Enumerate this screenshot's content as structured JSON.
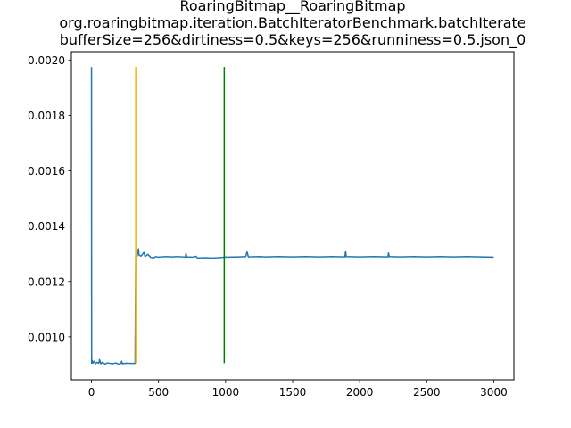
{
  "chart_data": {
    "type": "line",
    "title_lines": [
      "RoaringBitmap__RoaringBitmap",
      "org.roaringbitmap.iteration.BatchIteratorBenchmark.batchIterate",
      "bufferSize=256&dirtiness=0.5&keys=256&runniness=0.5.json_0"
    ],
    "xlim": [
      -150,
      3150
    ],
    "ylim": [
      0.000845,
      0.00203
    ],
    "x_ticks": [
      0,
      500,
      1000,
      1500,
      2000,
      2500,
      3000
    ],
    "y_ticks": [
      0.001,
      0.0012,
      0.0014,
      0.0016,
      0.0018,
      0.002
    ],
    "x_tick_labels": [
      "0",
      "500",
      "1000",
      "1500",
      "2000",
      "2500",
      "3000"
    ],
    "y_tick_labels": [
      "0.0010",
      "0.0012",
      "0.0014",
      "0.0016",
      "0.0018",
      "0.0020"
    ],
    "grid": false,
    "series": [
      {
        "color": "#1f77b4",
        "points": [
          [
            0,
            0.001975
          ],
          [
            1,
            0.000905
          ],
          [
            5,
            0.000915
          ],
          [
            10,
            0.000905
          ],
          [
            20,
            0.000912
          ],
          [
            30,
            0.000903
          ],
          [
            40,
            0.000908
          ],
          [
            55,
            0.000905
          ],
          [
            60,
            0.000918
          ],
          [
            70,
            0.000903
          ],
          [
            80,
            0.000908
          ],
          [
            100,
            0.000902
          ],
          [
            120,
            0.000906
          ],
          [
            140,
            0.000904
          ],
          [
            160,
            0.000903
          ],
          [
            180,
            0.000906
          ],
          [
            200,
            0.000902
          ],
          [
            220,
            0.000904
          ],
          [
            225,
            0.000912
          ],
          [
            230,
            0.000903
          ],
          [
            260,
            0.000905
          ],
          [
            290,
            0.000904
          ],
          [
            325,
            0.000904
          ],
          [
            330,
            0.001298
          ],
          [
            340,
            0.001292
          ],
          [
            350,
            0.001318
          ],
          [
            355,
            0.001295
          ],
          [
            370,
            0.001292
          ],
          [
            390,
            0.001305
          ],
          [
            400,
            0.00129
          ],
          [
            420,
            0.001298
          ],
          [
            440,
            0.001288
          ],
          [
            460,
            0.001285
          ],
          [
            480,
            0.00129
          ],
          [
            500,
            0.001288
          ],
          [
            550,
            0.00129
          ],
          [
            600,
            0.001289
          ],
          [
            650,
            0.00129
          ],
          [
            700,
            0.001288
          ],
          [
            705,
            0.001302
          ],
          [
            710,
            0.001289
          ],
          [
            750,
            0.001288
          ],
          [
            780,
            0.001291
          ],
          [
            790,
            0.001285
          ],
          [
            850,
            0.001286
          ],
          [
            900,
            0.001285
          ],
          [
            950,
            0.001286
          ],
          [
            1000,
            0.001288
          ],
          [
            1100,
            0.001289
          ],
          [
            1150,
            0.00129
          ],
          [
            1160,
            0.001307
          ],
          [
            1170,
            0.001289
          ],
          [
            1250,
            0.00129
          ],
          [
            1300,
            0.001289
          ],
          [
            1400,
            0.00129
          ],
          [
            1500,
            0.001289
          ],
          [
            1600,
            0.00129
          ],
          [
            1700,
            0.001289
          ],
          [
            1800,
            0.00129
          ],
          [
            1890,
            0.001289
          ],
          [
            1895,
            0.00131
          ],
          [
            1900,
            0.00129
          ],
          [
            2000,
            0.001289
          ],
          [
            2100,
            0.00129
          ],
          [
            2210,
            0.001289
          ],
          [
            2215,
            0.001303
          ],
          [
            2220,
            0.00129
          ],
          [
            2300,
            0.001289
          ],
          [
            2400,
            0.00129
          ],
          [
            2500,
            0.001289
          ],
          [
            2600,
            0.00129
          ],
          [
            2700,
            0.001289
          ],
          [
            2800,
            0.00129
          ],
          [
            2900,
            0.001289
          ],
          [
            3000,
            0.001288
          ]
        ]
      }
    ],
    "vlines": [
      {
        "x": 330,
        "y": [
          0.000905,
          0.001975
        ],
        "color": "#ffb000"
      },
      {
        "x": 990,
        "y": [
          0.000905,
          0.001975
        ],
        "color": "#008000"
      }
    ]
  }
}
